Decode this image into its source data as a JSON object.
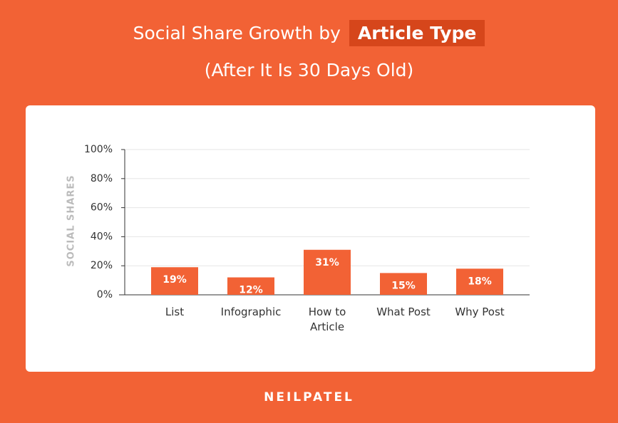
{
  "header": {
    "title": "Social Share Growth by",
    "title_highlight": "Article Type",
    "subtitle": "(After It Is 30 Days Old)"
  },
  "chart_data": {
    "type": "bar",
    "y_label": "SOCIAL SHARES",
    "categories": [
      "List",
      "Infographic",
      "How to Article",
      "What Post",
      "Why Post"
    ],
    "values": [
      19,
      12,
      31,
      15,
      18
    ],
    "value_labels": [
      "19%",
      "12%",
      "31%",
      "15%",
      "18%"
    ],
    "color": "#f26235",
    "ylim": [
      0,
      100
    ],
    "yticks": [
      {
        "value": 0,
        "label": "0%"
      },
      {
        "value": 20,
        "label": "20%"
      },
      {
        "value": 40,
        "label": "40%"
      },
      {
        "value": 60,
        "label": "60%"
      },
      {
        "value": 80,
        "label": "80%"
      },
      {
        "value": 100,
        "label": "100%"
      }
    ],
    "grid": true
  },
  "footer": {
    "brand": "NEILPATEL"
  }
}
